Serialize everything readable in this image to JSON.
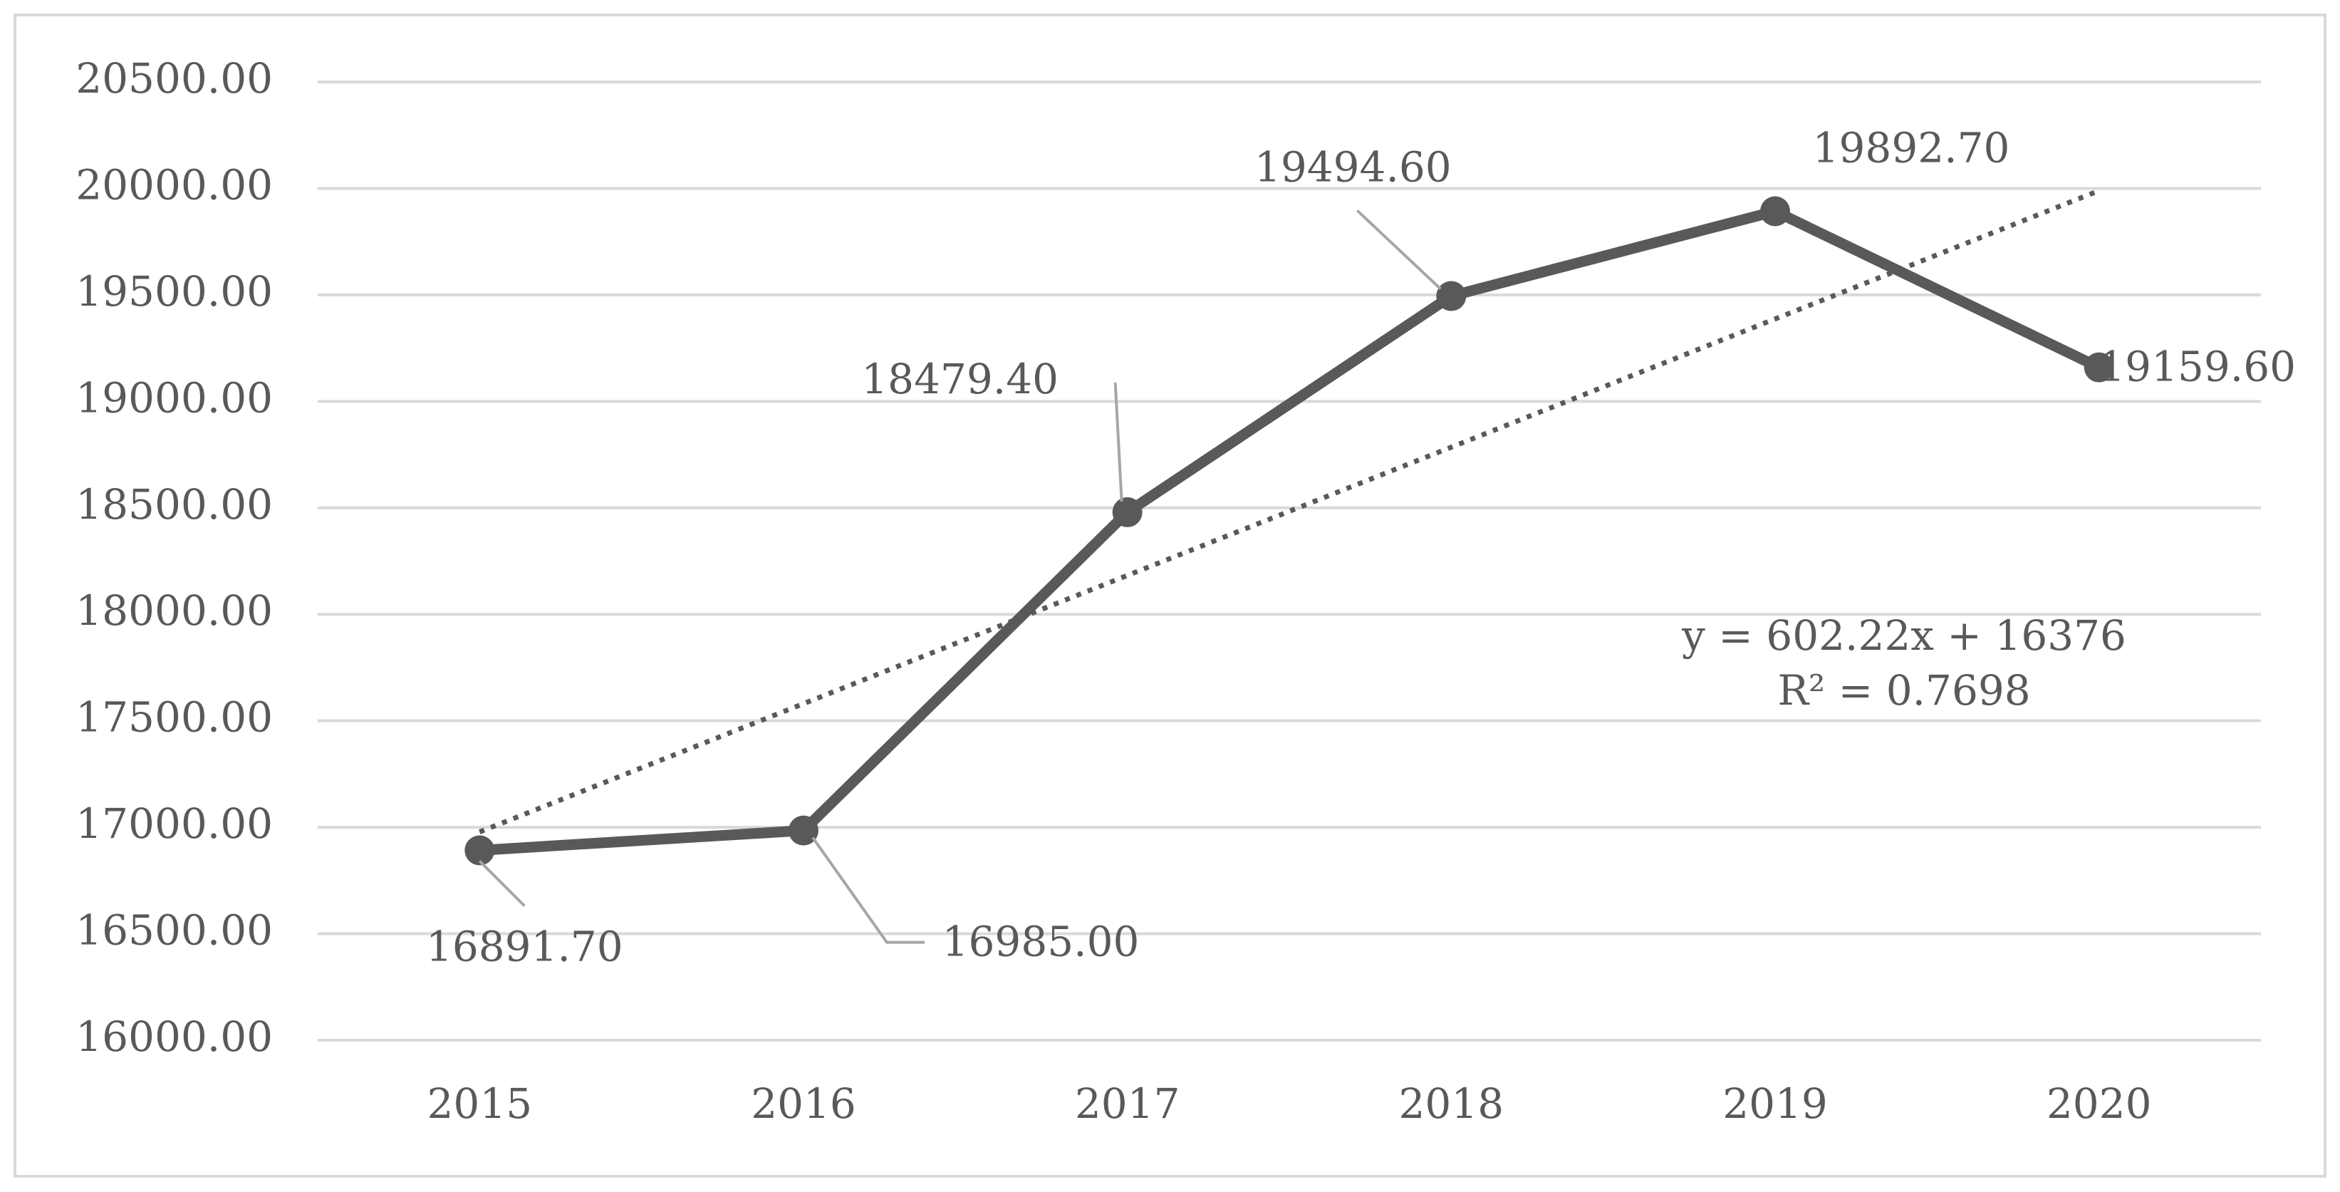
{
  "chart_data": {
    "type": "line",
    "categories": [
      "2015",
      "2016",
      "2017",
      "2018",
      "2019",
      "2020"
    ],
    "series": [
      {
        "color": "#595959",
        "values": [
          16891.7,
          16985.0,
          18479.4,
          19494.6,
          19892.7,
          19159.6
        ],
        "value_labels": [
          "16891.70",
          "16985.00",
          "18479.40",
          "19494.60",
          "19892.70",
          "19159.60"
        ]
      }
    ],
    "ylim": [
      16000,
      20500
    ],
    "yticks": [
      {
        "value": 16000,
        "label": "16000.00"
      },
      {
        "value": 16500,
        "label": "16500.00"
      },
      {
        "value": 17000,
        "label": "17000.00"
      },
      {
        "value": 17500,
        "label": "17500.00"
      },
      {
        "value": 18000,
        "label": "18000.00"
      },
      {
        "value": 18500,
        "label": "18500.00"
      },
      {
        "value": 19000,
        "label": "19000.00"
      },
      {
        "value": 19500,
        "label": "19500.00"
      },
      {
        "value": 20000,
        "label": "20000.00"
      },
      {
        "value": 20500,
        "label": "20500.00"
      }
    ],
    "grid": true,
    "trendline": {
      "type": "linear",
      "slope": 602.22,
      "intercept": 16376,
      "color": "#595959",
      "equation": "y = 602.22x + 16376",
      "r_squared": "R² = 0.7698"
    }
  }
}
